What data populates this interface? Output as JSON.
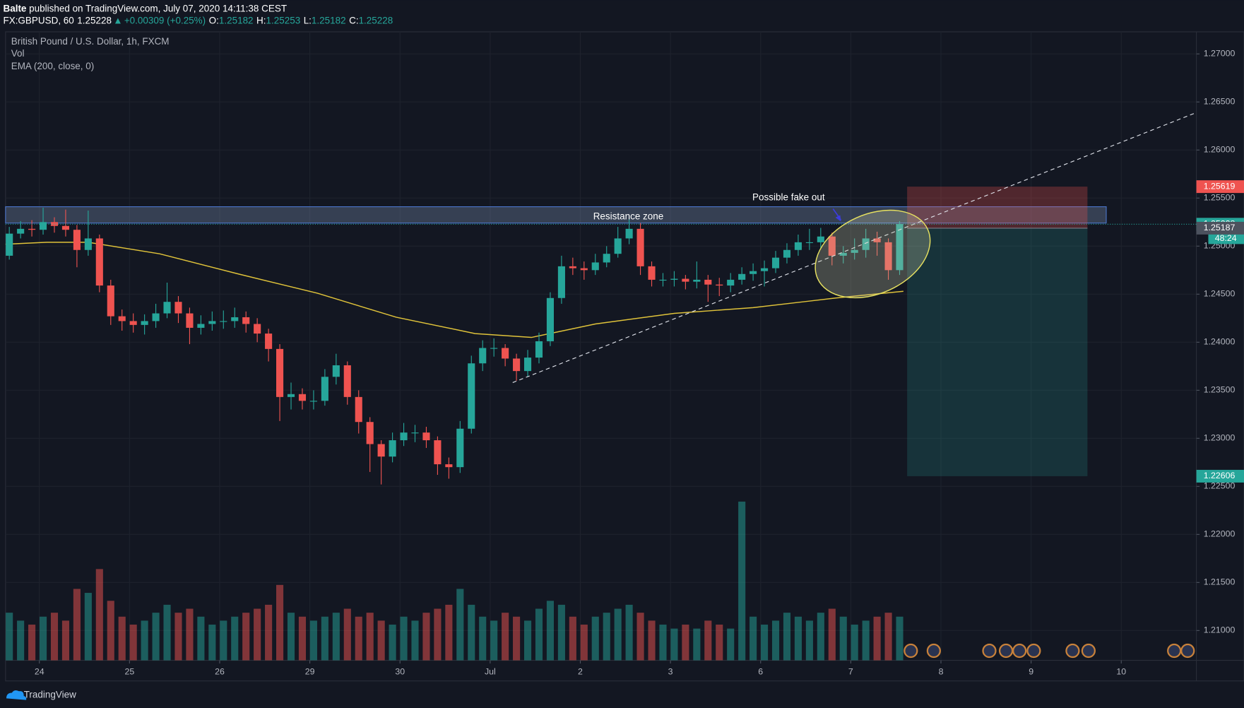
{
  "header": {
    "author": "Balte",
    "published": " published on TradingView.com, July 07, 2020 14:11:38 CEST",
    "symbol": "FX:GBPUSD, 60",
    "last": "1.25228",
    "arrow": "▲",
    "change": "+0.00309 (+0.25%)",
    "ohlc": [
      {
        "label": "O:",
        "value": "1.25182"
      },
      {
        "label": "H:",
        "value": "1.25253"
      },
      {
        "label": "L:",
        "value": "1.25182"
      },
      {
        "label": "C:",
        "value": "1.25228"
      }
    ]
  },
  "chart_data": {
    "type": "candlestick",
    "title": "British Pound / U.S. Dollar, 1h, FXCM",
    "indicators": [
      "Vol",
      "EMA (200, close, 0)"
    ],
    "up_color": "#26a69a",
    "down_color": "#ef5350",
    "x": [
      1,
      4,
      7,
      10,
      13,
      16,
      19,
      22,
      25,
      28,
      31,
      34,
      37,
      40,
      43,
      46,
      49,
      52,
      55,
      58,
      61,
      64,
      67,
      70,
      73,
      76,
      79,
      82,
      85,
      88,
      91,
      94,
      97,
      100,
      103,
      106,
      109,
      112,
      115,
      118,
      121,
      124,
      127,
      130,
      133,
      136,
      139,
      142,
      145,
      148,
      151,
      154,
      157,
      160,
      163,
      166,
      169,
      172,
      175,
      178,
      181,
      184,
      187,
      190,
      193,
      196,
      199,
      202,
      205,
      208,
      211,
      214,
      217,
      220,
      223,
      226,
      229,
      232,
      235,
      238
    ],
    "open": [
      1.249,
      1.2513,
      1.2518,
      1.2517,
      1.2525,
      1.2521,
      1.2517,
      1.2496,
      1.2508,
      1.2459,
      1.2427,
      1.2422,
      1.2418,
      1.2422,
      1.243,
      1.2442,
      1.243,
      1.2415,
      1.2419,
      1.2422,
      1.2422,
      1.2426,
      1.2419,
      1.2409,
      1.2393,
      1.2343,
      1.2346,
      1.2339,
      1.2339,
      1.2364,
      1.2376,
      1.2343,
      1.2317,
      1.2294,
      1.2281,
      1.2298,
      1.2306,
      1.2306,
      1.2298,
      1.2273,
      1.227,
      1.231,
      1.2378,
      1.2394,
      1.2394,
      1.2383,
      1.237,
      1.2384,
      1.2401,
      1.2446,
      1.2479,
      1.2477,
      1.2475,
      1.2483,
      1.2492,
      1.2508,
      1.2518,
      1.2479,
      1.2465,
      1.2465,
      1.2466,
      1.2463,
      1.2465,
      1.246,
      1.2459,
      1.2465,
      1.2471,
      1.2474,
      1.2477,
      1.2488,
      1.2496,
      1.2504,
      1.2504,
      1.251,
      1.249,
      1.2493,
      1.2496,
      1.2508,
      1.2504,
      1.2475
    ],
    "high": [
      1.252,
      1.2526,
      1.2527,
      1.254,
      1.253,
      1.2538,
      1.2522,
      1.2537,
      1.2512,
      1.2465,
      1.2434,
      1.243,
      1.2429,
      1.244,
      1.2462,
      1.2448,
      1.2436,
      1.2428,
      1.2432,
      1.2433,
      1.2436,
      1.2432,
      1.2425,
      1.2414,
      1.2398,
      1.2358,
      1.2352,
      1.235,
      1.2372,
      1.2388,
      1.238,
      1.235,
      1.2322,
      1.2298,
      1.2306,
      1.2316,
      1.2314,
      1.2312,
      1.2302,
      1.228,
      1.2318,
      1.2386,
      1.2402,
      1.2404,
      1.2398,
      1.2388,
      1.2392,
      1.241,
      1.2452,
      1.249,
      1.2488,
      1.2484,
      1.2492,
      1.25,
      1.252,
      1.2528,
      1.2524,
      1.2484,
      1.2472,
      1.2474,
      1.247,
      1.2484,
      1.247,
      1.2467,
      1.2472,
      1.2478,
      1.2482,
      1.2485,
      1.2495,
      1.2503,
      1.2512,
      1.2518,
      1.2519,
      1.2514,
      1.25,
      1.2508,
      1.2518,
      1.2515,
      1.2508,
      1.2526
    ],
    "low": [
      1.2486,
      1.2508,
      1.251,
      1.2512,
      1.2514,
      1.251,
      1.2478,
      1.249,
      1.2452,
      1.2418,
      1.2412,
      1.241,
      1.2408,
      1.2415,
      1.2425,
      1.242,
      1.2398,
      1.2408,
      1.2412,
      1.2414,
      1.2415,
      1.241,
      1.24,
      1.238,
      1.2318,
      1.233,
      1.233,
      1.233,
      1.2334,
      1.2356,
      1.2335,
      1.2305,
      1.2265,
      1.2252,
      1.2275,
      1.2292,
      1.2296,
      1.229,
      1.2262,
      1.2258,
      1.2264,
      1.2305,
      1.237,
      1.2385,
      1.2375,
      1.236,
      1.2364,
      1.2378,
      1.2396,
      1.244,
      1.247,
      1.2465,
      1.247,
      1.2478,
      1.2488,
      1.2502,
      1.247,
      1.2458,
      1.2458,
      1.2458,
      1.2455,
      1.2456,
      1.2442,
      1.2448,
      1.2452,
      1.246,
      1.2464,
      1.2458,
      1.2472,
      1.2482,
      1.249,
      1.2496,
      1.2498,
      1.248,
      1.2482,
      1.2486,
      1.2488,
      1.249,
      1.2465,
      1.247
    ],
    "close": [
      1.2513,
      1.2518,
      1.2517,
      1.2525,
      1.2521,
      1.2517,
      1.2496,
      1.2508,
      1.2459,
      1.2427,
      1.2422,
      1.2418,
      1.2422,
      1.243,
      1.2442,
      1.243,
      1.2415,
      1.2419,
      1.2422,
      1.2422,
      1.2426,
      1.2419,
      1.2409,
      1.2393,
      1.2343,
      1.2346,
      1.2339,
      1.2339,
      1.2364,
      1.2376,
      1.2343,
      1.2317,
      1.2294,
      1.2281,
      1.2298,
      1.2306,
      1.2306,
      1.2298,
      1.2273,
      1.227,
      1.231,
      1.2378,
      1.2394,
      1.2394,
      1.2383,
      1.237,
      1.2384,
      1.2401,
      1.2446,
      1.2479,
      1.2477,
      1.2475,
      1.2483,
      1.2492,
      1.2508,
      1.2518,
      1.2479,
      1.2465,
      1.2465,
      1.2466,
      1.2463,
      1.2465,
      1.246,
      1.2459,
      1.2465,
      1.2471,
      1.2474,
      1.2477,
      1.2488,
      1.2496,
      1.2504,
      1.2504,
      1.251,
      1.249,
      1.2493,
      1.2496,
      1.2508,
      1.2504,
      1.2475,
      1.2523
    ],
    "volume": [
      60,
      50,
      45,
      55,
      60,
      50,
      90,
      85,
      115,
      75,
      55,
      45,
      50,
      60,
      70,
      60,
      65,
      55,
      45,
      50,
      55,
      60,
      65,
      70,
      95,
      60,
      55,
      50,
      55,
      60,
      65,
      55,
      60,
      50,
      45,
      55,
      50,
      60,
      65,
      70,
      90,
      70,
      55,
      50,
      60,
      55,
      50,
      65,
      75,
      70,
      55,
      45,
      55,
      60,
      65,
      70,
      60,
      50,
      45,
      40,
      45,
      40,
      50,
      45,
      40,
      200,
      55,
      45,
      50,
      60,
      55,
      50,
      60,
      65,
      55,
      45,
      50,
      55,
      60,
      55
    ],
    "ema": {
      "color": "#e0c33a",
      "x": [
        0,
        11,
        22,
        41,
        62,
        83,
        104,
        125,
        140,
        157,
        178,
        199,
        221,
        239
      ],
      "values": [
        1.2502,
        1.2504,
        1.2504,
        1.2492,
        1.2471,
        1.2451,
        1.2426,
        1.2409,
        1.2405,
        1.2419,
        1.243,
        1.2436,
        1.2446,
        1.2453
      ]
    },
    "xlim": [
      0,
      317
    ],
    "xticks": [
      {
        "value": 9,
        "label": "24"
      },
      {
        "value": 33,
        "label": "25"
      },
      {
        "value": 57,
        "label": "26"
      },
      {
        "value": 81,
        "label": "29"
      },
      {
        "value": 105,
        "label": "30"
      },
      {
        "value": 129,
        "label": "Jul"
      },
      {
        "value": 153,
        "label": "2"
      },
      {
        "value": 177,
        "label": "3"
      },
      {
        "value": 201,
        "label": "6"
      },
      {
        "value": 225,
        "label": "7"
      },
      {
        "value": 249,
        "label": "8"
      },
      {
        "value": 273,
        "label": "9"
      },
      {
        "value": 297,
        "label": "10"
      }
    ],
    "ylim": [
      1.2069,
      1.2723
    ],
    "yticks": [
      {
        "value": 1.21,
        "label": "1.21000"
      },
      {
        "value": 1.215,
        "label": "1.21500"
      },
      {
        "value": 1.22,
        "label": "1.22000"
      },
      {
        "value": 1.225,
        "label": "1.22500"
      },
      {
        "value": 1.23,
        "label": "1.23000"
      },
      {
        "value": 1.235,
        "label": "1.23500"
      },
      {
        "value": 1.24,
        "label": "1.24000"
      },
      {
        "value": 1.245,
        "label": "1.24500"
      },
      {
        "value": 1.25,
        "label": "1.25000"
      },
      {
        "value": 1.255,
        "label": "1.25500"
      },
      {
        "value": 1.26,
        "label": "1.26000"
      },
      {
        "value": 1.265,
        "label": "1.26500"
      },
      {
        "value": 1.27,
        "label": "1.27000"
      }
    ],
    "grid": true,
    "resistance": {
      "label": "Resistance zone",
      "x": [
        0,
        293
      ],
      "y": [
        1.2524,
        1.2541
      ]
    },
    "trendline": {
      "x": [
        135,
        317
      ],
      "y": [
        1.2358,
        1.2639
      ]
    },
    "position": {
      "x": [
        240,
        288
      ],
      "stop": 1.25619,
      "entry": 1.25187,
      "target": 1.22606
    },
    "annotation": "Possible fake out",
    "last_price": 1.25228,
    "countdown": "48:24"
  },
  "footer": {
    "brand": "TradingView"
  }
}
